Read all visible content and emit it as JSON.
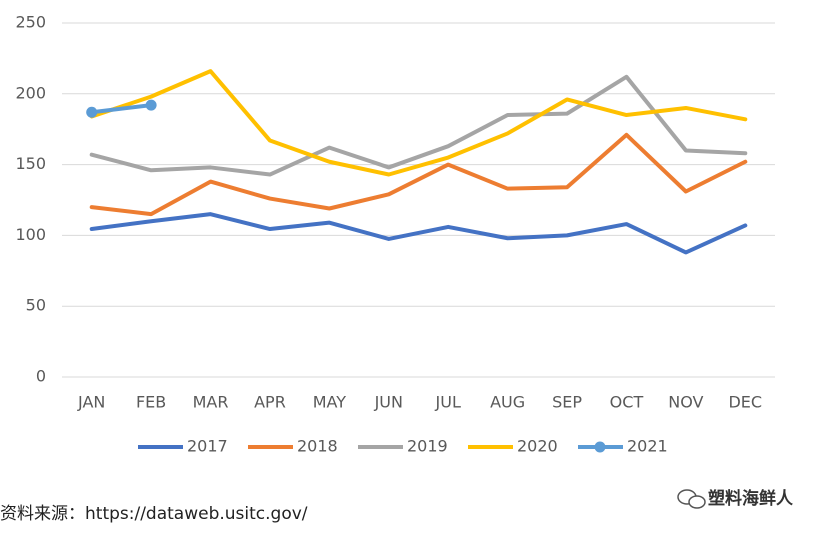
{
  "chart_data": {
    "type": "line",
    "categories": [
      "JAN",
      "FEB",
      "MAR",
      "APR",
      "MAY",
      "JUN",
      "JUL",
      "AUG",
      "SEP",
      "OCT",
      "NOV",
      "DEC"
    ],
    "series": [
      {
        "name": "2017",
        "color": "#4472c4",
        "values": [
          104.5,
          110,
          115,
          104.5,
          109,
          97.5,
          106,
          98,
          100,
          108,
          88,
          107
        ]
      },
      {
        "name": "2018",
        "color": "#ed7d31",
        "values": [
          120,
          115,
          138,
          126,
          119,
          129,
          150,
          133,
          134,
          171,
          131,
          152
        ]
      },
      {
        "name": "2019",
        "color": "#a5a5a5",
        "values": [
          157,
          146,
          148,
          143,
          162,
          148,
          163,
          185,
          186,
          212,
          160,
          158
        ]
      },
      {
        "name": "2020",
        "color": "#ffc000",
        "values": [
          184,
          198,
          216,
          167,
          152,
          143,
          155,
          172,
          196,
          185,
          190,
          182
        ]
      },
      {
        "name": "2021",
        "color": "#5b9bd5",
        "marker": true,
        "values": [
          187,
          192,
          null,
          null,
          null,
          null,
          null,
          null,
          null,
          null,
          null,
          null
        ]
      }
    ],
    "ylim": [
      0,
      250
    ],
    "yticks": [
      0,
      50,
      100,
      150,
      200,
      250
    ],
    "grid": true,
    "legend": "bottom",
    "source": "资料来源：https://dataweb.usitc.gov/",
    "watermark": "塑料海鲜人"
  }
}
